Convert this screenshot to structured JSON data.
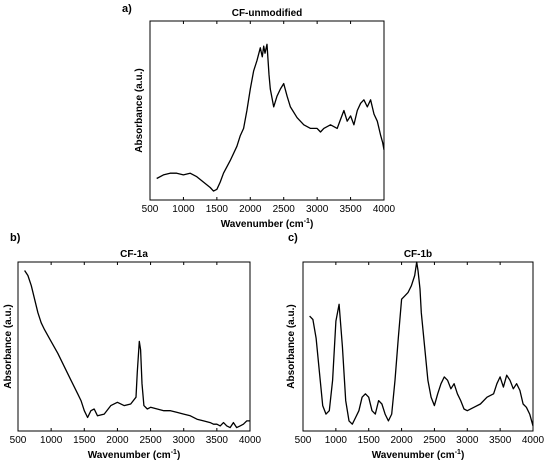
{
  "chart_data": [
    {
      "type": "line",
      "panel_label": "a)",
      "title": "CF-unmodified",
      "xlabel": "Wavenumber (cm",
      "xlabel_sup": "-1",
      "xlabel_end": ")",
      "ylabel": "Absorbance (a.u.)",
      "xlim": [
        500,
        4000
      ],
      "ylim": [
        0,
        1
      ],
      "xticks": [
        500,
        1000,
        1500,
        2000,
        2500,
        3000,
        3500,
        4000
      ],
      "grid": false,
      "series": [
        {
          "x": [
            600,
            700,
            800,
            900,
            1000,
            1100,
            1200,
            1300,
            1400,
            1450,
            1500,
            1550,
            1600,
            1700,
            1800,
            1850,
            1900,
            1950,
            2000,
            2050,
            2100,
            2150,
            2180,
            2200,
            2220,
            2250,
            2280,
            2300,
            2350,
            2400,
            2450,
            2500,
            2550,
            2600,
            2700,
            2800,
            2900,
            3000,
            3050,
            3100,
            3200,
            3300,
            3350,
            3400,
            3450,
            3500,
            3550,
            3600,
            3650,
            3700,
            3750,
            3800,
            3850,
            3900,
            3950,
            3980,
            4000
          ],
          "y": [
            0.12,
            0.14,
            0.15,
            0.15,
            0.14,
            0.15,
            0.13,
            0.1,
            0.07,
            0.05,
            0.06,
            0.1,
            0.15,
            0.22,
            0.3,
            0.36,
            0.4,
            0.5,
            0.62,
            0.72,
            0.78,
            0.85,
            0.8,
            0.86,
            0.82,
            0.87,
            0.7,
            0.62,
            0.52,
            0.58,
            0.62,
            0.65,
            0.58,
            0.52,
            0.46,
            0.42,
            0.4,
            0.4,
            0.38,
            0.4,
            0.42,
            0.4,
            0.45,
            0.5,
            0.44,
            0.47,
            0.42,
            0.5,
            0.54,
            0.56,
            0.52,
            0.56,
            0.48,
            0.44,
            0.36,
            0.32,
            0.28
          ]
        }
      ]
    },
    {
      "type": "line",
      "panel_label": "b)",
      "title": "CF-1a",
      "xlabel": "Wavenumber (cm",
      "xlabel_sup": "-1",
      "xlabel_end": ")",
      "ylabel": "Absorbance (a.u.)",
      "xlim": [
        500,
        4000
      ],
      "ylim": [
        0,
        1
      ],
      "xticks": [
        500,
        1000,
        1500,
        2000,
        2500,
        3000,
        3500,
        4000
      ],
      "grid": false,
      "series": [
        {
          "x": [
            600,
            650,
            700,
            750,
            800,
            850,
            900,
            1000,
            1100,
            1200,
            1300,
            1400,
            1450,
            1500,
            1550,
            1600,
            1650,
            1700,
            1800,
            1900,
            2000,
            2100,
            2200,
            2280,
            2300,
            2330,
            2350,
            2370,
            2400,
            2450,
            2500,
            2600,
            2700,
            2800,
            2900,
            3000,
            3100,
            3200,
            3300,
            3400,
            3450,
            3500,
            3550,
            3600,
            3650,
            3700,
            3750,
            3800,
            3850,
            3900,
            3950,
            4000
          ],
          "y": [
            0.95,
            0.92,
            0.86,
            0.78,
            0.7,
            0.64,
            0.6,
            0.53,
            0.46,
            0.38,
            0.3,
            0.22,
            0.18,
            0.12,
            0.08,
            0.12,
            0.13,
            0.09,
            0.1,
            0.15,
            0.17,
            0.15,
            0.16,
            0.2,
            0.35,
            0.53,
            0.48,
            0.28,
            0.15,
            0.13,
            0.14,
            0.13,
            0.12,
            0.12,
            0.11,
            0.1,
            0.09,
            0.07,
            0.06,
            0.05,
            0.04,
            0.04,
            0.03,
            0.05,
            0.03,
            0.02,
            0.05,
            0.02,
            0.03,
            0.04,
            0.06,
            0.06
          ]
        }
      ]
    },
    {
      "type": "line",
      "panel_label": "c)",
      "title": "CF-1b",
      "xlabel": "Wavenumber (cm",
      "xlabel_sup": "-1",
      "xlabel_end": ")",
      "ylabel": "Absorbance (a.u.)",
      "xlim": [
        500,
        4000
      ],
      "ylim": [
        0,
        1
      ],
      "xticks": [
        500,
        1000,
        1500,
        2000,
        2500,
        3000,
        3500,
        4000
      ],
      "grid": false,
      "series": [
        {
          "x": [
            600,
            650,
            700,
            750,
            800,
            850,
            900,
            950,
            1000,
            1050,
            1100,
            1150,
            1200,
            1250,
            1300,
            1350,
            1400,
            1450,
            1500,
            1550,
            1600,
            1650,
            1700,
            1750,
            1800,
            1850,
            1900,
            1950,
            2000,
            2050,
            2100,
            2150,
            2200,
            2230,
            2250,
            2280,
            2300,
            2350,
            2400,
            2450,
            2500,
            2550,
            2600,
            2650,
            2700,
            2750,
            2800,
            2850,
            2900,
            2950,
            3000,
            3100,
            3200,
            3300,
            3400,
            3450,
            3500,
            3550,
            3600,
            3650,
            3700,
            3750,
            3800,
            3850,
            3900,
            3950,
            4000
          ],
          "y": [
            0.68,
            0.66,
            0.55,
            0.35,
            0.15,
            0.1,
            0.12,
            0.3,
            0.65,
            0.75,
            0.5,
            0.18,
            0.06,
            0.04,
            0.08,
            0.12,
            0.2,
            0.22,
            0.2,
            0.12,
            0.1,
            0.18,
            0.16,
            0.1,
            0.06,
            0.1,
            0.3,
            0.55,
            0.78,
            0.8,
            0.82,
            0.86,
            0.92,
            1.0,
            0.95,
            0.84,
            0.7,
            0.5,
            0.3,
            0.2,
            0.15,
            0.22,
            0.28,
            0.32,
            0.3,
            0.25,
            0.28,
            0.22,
            0.18,
            0.13,
            0.12,
            0.14,
            0.16,
            0.2,
            0.22,
            0.28,
            0.32,
            0.26,
            0.33,
            0.3,
            0.25,
            0.28,
            0.24,
            0.16,
            0.14,
            0.1,
            0.03
          ]
        }
      ]
    }
  ]
}
